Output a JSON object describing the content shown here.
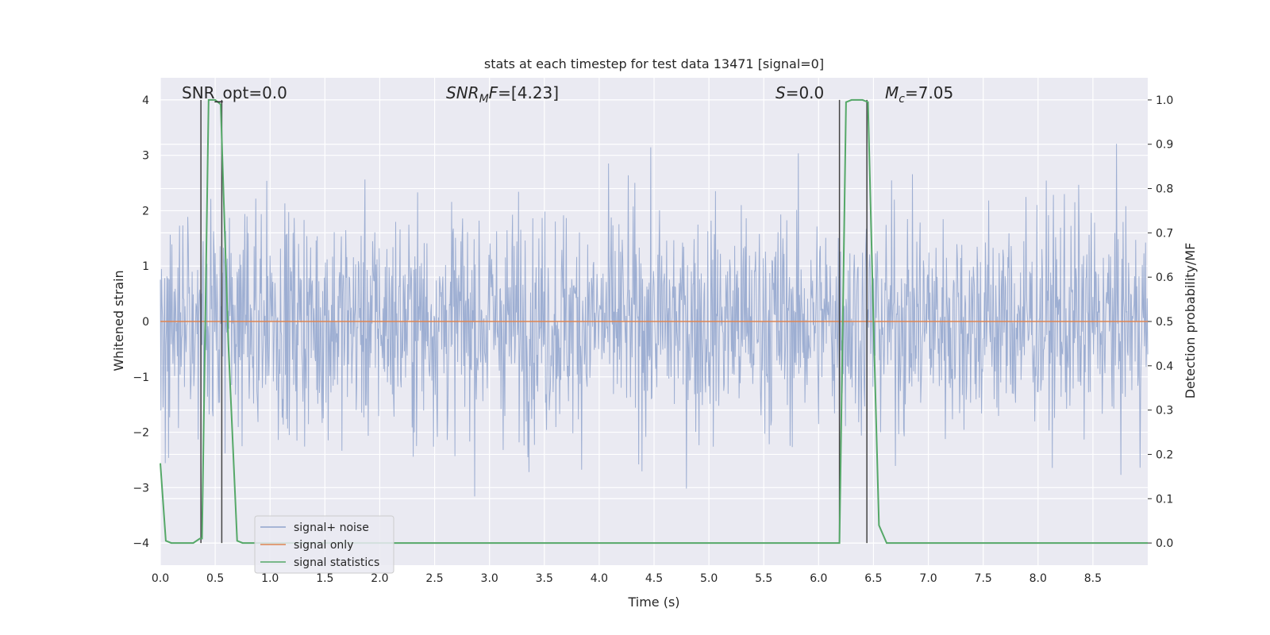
{
  "chart_data": {
    "type": "line",
    "title": "stats at each timestep for test data 13471 [signal=0]",
    "xlabel": "Time (s)",
    "ylabel_left": "Whitened strain",
    "ylabel_right": "Detection probability/MF",
    "xlim": [
      0.0,
      9.0
    ],
    "ylim_left": [
      -4.4,
      4.4
    ],
    "ylim_right": [
      -0.05,
      1.05
    ],
    "xticks": [
      "0.0",
      "0.5",
      "1.0",
      "1.5",
      "2.0",
      "2.5",
      "3.0",
      "3.5",
      "4.0",
      "4.5",
      "5.0",
      "5.5",
      "6.0",
      "6.5",
      "7.0",
      "7.5",
      "8.0",
      "8.5"
    ],
    "yticks_left": [
      "4",
      "3",
      "2",
      "1",
      "0",
      "−1",
      "−2",
      "−3",
      "−4"
    ],
    "yticks_right": [
      "1.0",
      "0.9",
      "0.8",
      "0.7",
      "0.6",
      "0.5",
      "0.4",
      "0.3",
      "0.2",
      "0.1",
      "0.0"
    ],
    "grid": true,
    "legend_position": "bottom-left",
    "annotations": {
      "snr_opt": "SNR_opt=0.0",
      "snr_mf_main": "SNR",
      "snr_mf_sub": "M",
      "snr_mf_tail": "F=[4.23]",
      "s_main": "S",
      "s_tail": "=0.0",
      "mc_main": "M",
      "mc_sub": "c",
      "mc_tail": "=7.05"
    },
    "series": [
      {
        "name": "signal+ noise",
        "axis": "left",
        "color": "#8fa3cc",
        "description_type": "noise",
        "amplitude_range": [
          -3.7,
          3.95
        ]
      },
      {
        "name": "signal only",
        "axis": "left",
        "color": "#dd8452",
        "x": [
          0.0,
          9.0
        ],
        "y": [
          0.0,
          0.0
        ]
      },
      {
        "name": "signal statistics",
        "axis": "right",
        "color": "#55a868",
        "x": [
          0.0,
          0.05,
          0.1,
          0.3,
          0.36,
          0.38,
          0.44,
          0.5,
          0.55,
          0.62,
          0.7,
          0.75,
          6.19,
          6.25,
          6.3,
          6.4,
          6.45,
          6.5,
          6.55,
          6.62,
          9.0
        ],
        "y": [
          0.18,
          0.005,
          0.0,
          0.0,
          0.01,
          0.01,
          1.0,
          1.0,
          0.99,
          0.45,
          0.005,
          0.0,
          0.0,
          0.995,
          1.0,
          1.0,
          0.995,
          0.5,
          0.04,
          0.0,
          0.0
        ]
      }
    ],
    "vertical_markers": [
      0.37,
      0.56,
      6.19,
      6.44
    ]
  }
}
